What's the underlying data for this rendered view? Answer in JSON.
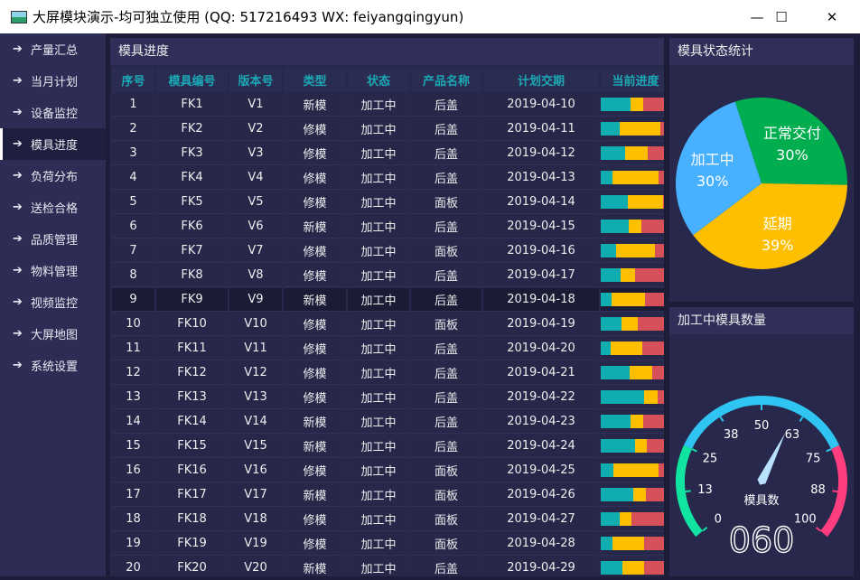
{
  "window": {
    "title": "大屏模块演示-均可独立使用 (QQ: 517216493  WX: feiyangqingyun)",
    "minimize": "—",
    "maximize": "☐",
    "close": "✕"
  },
  "sidebar": {
    "items": [
      {
        "label": "产量汇总"
      },
      {
        "label": "当月计划"
      },
      {
        "label": "设备监控"
      },
      {
        "label": "模具进度",
        "active": true
      },
      {
        "label": "负荷分布"
      },
      {
        "label": "送检合格"
      },
      {
        "label": "品质管理"
      },
      {
        "label": "物料管理"
      },
      {
        "label": "视频监控"
      },
      {
        "label": "大屏地图"
      },
      {
        "label": "系统设置"
      }
    ]
  },
  "table": {
    "title": "模具进度",
    "columns": [
      "序号",
      "模具编号",
      "版本号",
      "类型",
      "状态",
      "产品名称",
      "计划交期",
      "当前进度"
    ],
    "selected_row": 9,
    "progress_colors": [
      "#0fadb0",
      "#fdbf00",
      "#d6505a"
    ],
    "rows": [
      [
        "1",
        "FK1",
        "V1",
        "新模",
        "加工中",
        "后盖",
        "2019-04-10",
        [
          47,
          20,
          33
        ]
      ],
      [
        "2",
        "FK2",
        "V2",
        "修模",
        "加工中",
        "后盖",
        "2019-04-11",
        [
          30,
          64,
          6
        ]
      ],
      [
        "3",
        "FK3",
        "V3",
        "修模",
        "加工中",
        "后盖",
        "2019-04-12",
        [
          39,
          36,
          25
        ]
      ],
      [
        "4",
        "FK4",
        "V4",
        "修模",
        "加工中",
        "后盖",
        "2019-04-13",
        [
          19,
          73,
          8
        ]
      ],
      [
        "5",
        "FK5",
        "V5",
        "修模",
        "加工中",
        "面板",
        "2019-04-14",
        [
          43,
          56,
          1
        ]
      ],
      [
        "6",
        "FK6",
        "V6",
        "新模",
        "加工中",
        "后盖",
        "2019-04-15",
        [
          44,
          20,
          36
        ]
      ],
      [
        "7",
        "FK7",
        "V7",
        "修模",
        "加工中",
        "面板",
        "2019-04-16",
        [
          24,
          62,
          14
        ]
      ],
      [
        "8",
        "FK8",
        "V8",
        "修模",
        "加工中",
        "后盖",
        "2019-04-17",
        [
          31,
          23,
          46
        ]
      ],
      [
        "9",
        "FK9",
        "V9",
        "新模",
        "加工中",
        "后盖",
        "2019-04-18",
        [
          17,
          53,
          30
        ]
      ],
      [
        "10",
        "FK10",
        "V10",
        "修模",
        "加工中",
        "面板",
        "2019-04-19",
        [
          33,
          26,
          41
        ]
      ],
      [
        "11",
        "FK11",
        "V11",
        "修模",
        "加工中",
        "后盖",
        "2019-04-20",
        [
          16,
          50,
          34
        ]
      ],
      [
        "12",
        "FK12",
        "V12",
        "修模",
        "加工中",
        "后盖",
        "2019-04-21",
        [
          46,
          36,
          18
        ]
      ],
      [
        "13",
        "FK13",
        "V13",
        "修模",
        "加工中",
        "后盖",
        "2019-04-22",
        [
          69,
          21,
          10
        ]
      ],
      [
        "14",
        "FK14",
        "V14",
        "新模",
        "加工中",
        "后盖",
        "2019-04-23",
        [
          47,
          20,
          33
        ]
      ],
      [
        "15",
        "FK15",
        "V15",
        "新模",
        "加工中",
        "后盖",
        "2019-04-24",
        [
          54,
          19,
          27
        ]
      ],
      [
        "16",
        "FK16",
        "V16",
        "修模",
        "加工中",
        "面板",
        "2019-04-25",
        [
          20,
          71,
          9
        ]
      ],
      [
        "17",
        "FK17",
        "V17",
        "新模",
        "加工中",
        "面板",
        "2019-04-26",
        [
          51,
          20,
          29
        ]
      ],
      [
        "18",
        "FK18",
        "V18",
        "修模",
        "加工中",
        "面板",
        "2019-04-27",
        [
          30,
          19,
          51
        ]
      ],
      [
        "19",
        "FK19",
        "V19",
        "修模",
        "加工中",
        "面板",
        "2019-04-28",
        [
          19,
          49,
          32
        ]
      ],
      [
        "20",
        "FK20",
        "V20",
        "新模",
        "加工中",
        "后盖",
        "2019-04-29",
        [
          34,
          34,
          32
        ]
      ]
    ]
  },
  "pie": {
    "title": "模具状态统计",
    "slices": [
      {
        "label": "正常交付",
        "value": 30,
        "text": "30%",
        "color": "#00ad4f"
      },
      {
        "label": "延期",
        "value": 39,
        "text": "39%",
        "color": "#fdbf00"
      },
      {
        "label": "加工中",
        "value": 30,
        "text": "30%",
        "color": "#47b0ff"
      }
    ]
  },
  "gauge": {
    "title": "加工中模具数量",
    "label": "模具数",
    "value": 60,
    "display": "060",
    "min": 0,
    "max": 100,
    "ticks": [
      "0",
      "13",
      "25",
      "38",
      "50",
      "63",
      "75",
      "88",
      "100"
    ],
    "ranges": [
      {
        "from": 0,
        "to": 25,
        "color": "#11e3a0"
      },
      {
        "from": 25,
        "to": 75,
        "color": "#2fc4f2"
      },
      {
        "from": 75,
        "to": 100,
        "color": "#ff3d7f"
      }
    ],
    "needle_color": "#b9e2ff"
  }
}
